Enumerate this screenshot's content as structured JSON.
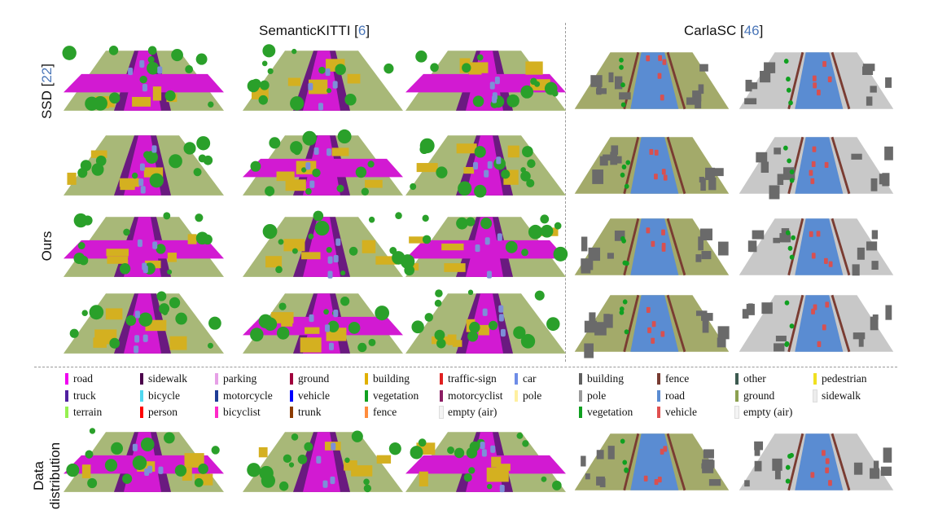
{
  "headers": {
    "kitti_name": "SemanticKITTI",
    "kitti_cite": "6",
    "carla_name": "CarlaSC",
    "carla_cite": "46"
  },
  "row_labels": {
    "ssd_name": "SSD",
    "ssd_cite": "22",
    "ours": "Ours",
    "data_line1": "Data",
    "data_line2": "distribution"
  },
  "kitti_legend": [
    {
      "label": "road",
      "color": "#f000f0"
    },
    {
      "label": "sidewalk",
      "color": "#4b004b"
    },
    {
      "label": "parking",
      "color": "#e6a0e6"
    },
    {
      "label": "ground",
      "color": "#a0003c"
    },
    {
      "label": "building",
      "color": "#e0b000"
    },
    {
      "label": "traffic-sign",
      "color": "#e02020"
    },
    {
      "label": "car",
      "color": "#6e8ce6"
    },
    {
      "label": "truck",
      "color": "#5020a0"
    },
    {
      "label": "bicycle",
      "color": "#50d8f0"
    },
    {
      "label": "motorcycle",
      "color": "#1e3c96"
    },
    {
      "label": "vehicle",
      "color": "#0000ff"
    },
    {
      "label": "vegetation",
      "color": "#10a020"
    },
    {
      "label": "motorcyclist",
      "color": "#8c1e64"
    },
    {
      "label": "pole",
      "color": "#fff0a0"
    },
    {
      "label": "terrain",
      "color": "#96f050"
    },
    {
      "label": "person",
      "color": "#ff0000"
    },
    {
      "label": "bicyclist",
      "color": "#ff28c8"
    },
    {
      "label": "trunk",
      "color": "#8c3c00"
    },
    {
      "label": "fence",
      "color": "#ff8c3c"
    },
    {
      "label": "empty (air)",
      "color": "#f4f4f4"
    }
  ],
  "carla_legend": [
    {
      "label": "building",
      "color": "#606060"
    },
    {
      "label": "fence",
      "color": "#783c32"
    },
    {
      "label": "other",
      "color": "#3c5a50"
    },
    {
      "label": "pedestrian",
      "color": "#f0e020"
    },
    {
      "label": "pole",
      "color": "#9a9a9a"
    },
    {
      "label": "road",
      "color": "#5a8cd2"
    },
    {
      "label": "ground",
      "color": "#8ca050"
    },
    {
      "label": "sidewalk",
      "color": "#ececec"
    },
    {
      "label": "vegetation",
      "color": "#10a020"
    },
    {
      "label": "vehicle",
      "color": "#e05050"
    },
    {
      "label": "empty (air)",
      "color": "#f4f4f4"
    }
  ],
  "palette": {
    "road": "#d21ad2",
    "sidewalk": "#6a1a80",
    "parking": "#d8a0d8",
    "terrain": "#a8b878",
    "building": "#d4b020",
    "vegetation": "#2aa02a",
    "car": "#7d8fd8",
    "carla_road": "#5a8cd2",
    "carla_sidewalk": "#c8c8c8",
    "carla_building": "#6a6a6a",
    "carla_ground": "#a3aa6a",
    "carla_fence": "#7a3c32",
    "carla_vehicle": "#d85050"
  }
}
